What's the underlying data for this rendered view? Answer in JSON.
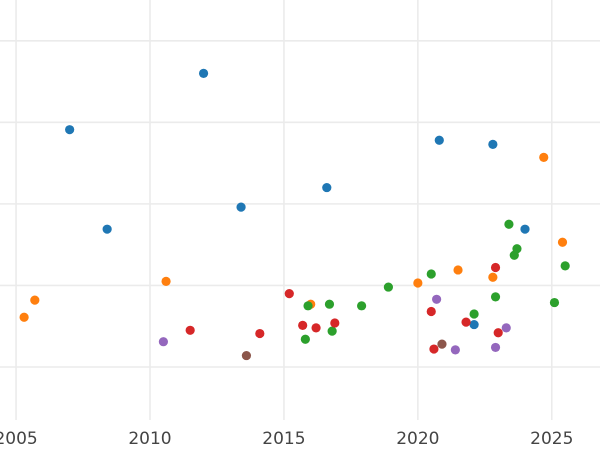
{
  "chart_data": {
    "type": "scatter",
    "title": "",
    "xlabel": "",
    "ylabel": "",
    "xlim": [
      2004.4,
      2026.8
    ],
    "ylim": [
      -3,
      100
    ],
    "xticks": [
      2005,
      2010,
      2015,
      2020,
      2025
    ],
    "xtick_labels": [
      "2005",
      "2010",
      "2015",
      "2020",
      "2025"
    ],
    "yticks": [
      10,
      30,
      50,
      70,
      90
    ],
    "grid": true,
    "legend": "none",
    "series": [
      {
        "color": "#1f77b4",
        "points": [
          {
            "x": 2007.0,
            "y": 68.2
          },
          {
            "x": 2008.4,
            "y": 43.8
          },
          {
            "x": 2012.0,
            "y": 82.0
          },
          {
            "x": 2013.4,
            "y": 49.2
          },
          {
            "x": 2016.6,
            "y": 54.0
          },
          {
            "x": 2020.8,
            "y": 65.6
          },
          {
            "x": 2022.1,
            "y": 20.4
          },
          {
            "x": 2022.8,
            "y": 64.6
          },
          {
            "x": 2024.0,
            "y": 43.8
          }
        ]
      },
      {
        "color": "#ff7f0e",
        "points": [
          {
            "x": 2005.3,
            "y": 22.2
          },
          {
            "x": 2005.7,
            "y": 26.4
          },
          {
            "x": 2010.6,
            "y": 31.0
          },
          {
            "x": 2016.0,
            "y": 25.4
          },
          {
            "x": 2020.0,
            "y": 30.6
          },
          {
            "x": 2021.5,
            "y": 33.8
          },
          {
            "x": 2022.8,
            "y": 32.0
          },
          {
            "x": 2024.7,
            "y": 61.4
          },
          {
            "x": 2025.4,
            "y": 40.6
          }
        ]
      },
      {
        "color": "#2ca02c",
        "points": [
          {
            "x": 2015.9,
            "y": 25.0
          },
          {
            "x": 2015.8,
            "y": 16.8
          },
          {
            "x": 2016.7,
            "y": 25.4
          },
          {
            "x": 2016.8,
            "y": 18.8
          },
          {
            "x": 2017.9,
            "y": 25.0
          },
          {
            "x": 2018.9,
            "y": 29.6
          },
          {
            "x": 2020.5,
            "y": 32.8
          },
          {
            "x": 2022.1,
            "y": 23.0
          },
          {
            "x": 2022.9,
            "y": 27.2
          },
          {
            "x": 2023.4,
            "y": 45.0
          },
          {
            "x": 2023.6,
            "y": 37.4
          },
          {
            "x": 2023.7,
            "y": 39.0
          },
          {
            "x": 2025.1,
            "y": 25.8
          },
          {
            "x": 2025.5,
            "y": 34.8
          }
        ]
      },
      {
        "color": "#d62728",
        "points": [
          {
            "x": 2011.5,
            "y": 19.0
          },
          {
            "x": 2014.1,
            "y": 18.2
          },
          {
            "x": 2015.2,
            "y": 28.0
          },
          {
            "x": 2015.7,
            "y": 20.2
          },
          {
            "x": 2016.2,
            "y": 19.6
          },
          {
            "x": 2016.9,
            "y": 20.8
          },
          {
            "x": 2020.5,
            "y": 23.6
          },
          {
            "x": 2020.6,
            "y": 14.4
          },
          {
            "x": 2021.8,
            "y": 21.0
          },
          {
            "x": 2022.9,
            "y": 34.4
          },
          {
            "x": 2023.0,
            "y": 18.4
          }
        ]
      },
      {
        "color": "#9467bd",
        "points": [
          {
            "x": 2010.5,
            "y": 16.2
          },
          {
            "x": 2020.7,
            "y": 26.6
          },
          {
            "x": 2021.4,
            "y": 14.2
          },
          {
            "x": 2022.9,
            "y": 14.8
          },
          {
            "x": 2023.3,
            "y": 19.6
          }
        ]
      },
      {
        "color": "#8c564b",
        "points": [
          {
            "x": 2013.6,
            "y": 12.8
          },
          {
            "x": 2020.9,
            "y": 15.6
          }
        ]
      }
    ]
  }
}
